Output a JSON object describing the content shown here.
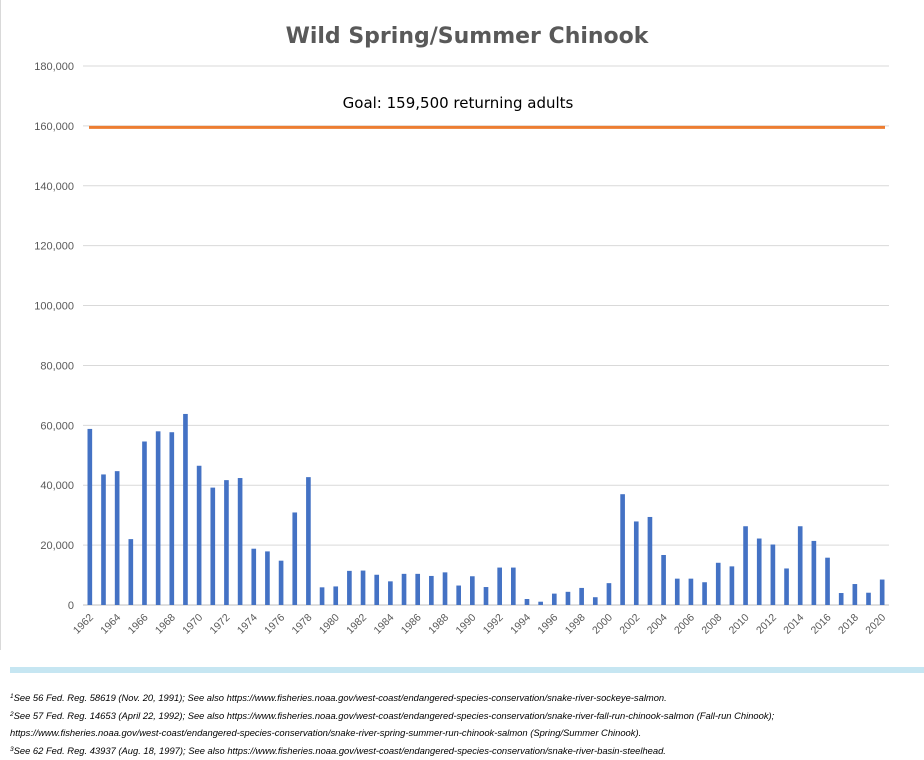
{
  "chart_data": {
    "type": "bar",
    "title": "Wild Spring/Summer Chinook",
    "xlabel": "",
    "ylabel": "",
    "ylim": [
      0,
      180000
    ],
    "yticks": [
      "0",
      "20,000",
      "40,000",
      "60,000",
      "80,000",
      "100,000",
      "120,000",
      "140,000",
      "160,000",
      "180,000"
    ],
    "grid": true,
    "legend": "none",
    "categories": [
      "1962",
      "1963",
      "1964",
      "1965",
      "1966",
      "1967",
      "1968",
      "1969",
      "1970",
      "1971",
      "1972",
      "1973",
      "1974",
      "1975",
      "1976",
      "1977",
      "1978",
      "1979",
      "1980",
      "1981",
      "1982",
      "1983",
      "1984",
      "1985",
      "1986",
      "1987",
      "1988",
      "1989",
      "1990",
      "1991",
      "1992",
      "1993",
      "1994",
      "1995",
      "1996",
      "1997",
      "1998",
      "1999",
      "2000",
      "2001",
      "2002",
      "2003",
      "2004",
      "2005",
      "2006",
      "2007",
      "2008",
      "2009",
      "2010",
      "2011",
      "2012",
      "2013",
      "2014",
      "2015",
      "2016",
      "2017",
      "2018",
      "2019",
      "2020"
    ],
    "xtick_labels": [
      "1962",
      "1964",
      "1966",
      "1968",
      "1970",
      "1972",
      "1974",
      "1976",
      "1978",
      "1980",
      "1982",
      "1984",
      "1986",
      "1988",
      "1990",
      "1992",
      "1994",
      "1996",
      "1998",
      "2000",
      "2002",
      "2004",
      "2006",
      "2008",
      "2010",
      "2012",
      "2014",
      "2016",
      "2018",
      "2020"
    ],
    "values": [
      58800,
      43600,
      44700,
      22000,
      54600,
      58000,
      57700,
      63800,
      46500,
      39200,
      41700,
      42400,
      18800,
      17900,
      14800,
      30900,
      42700,
      5900,
      6200,
      11400,
      11500,
      10100,
      7900,
      10400,
      10400,
      9700,
      10900,
      6500,
      9600,
      6000,
      12500,
      12500,
      2000,
      1100,
      3800,
      4400,
      5700,
      2600,
      7300,
      37000,
      27900,
      29400,
      16700,
      8800,
      8800,
      7600,
      14100,
      12900,
      26300,
      22200,
      20200,
      12200,
      26300,
      21400,
      15800,
      4000,
      7000,
      4100,
      8500
    ],
    "bar_color": "#4472c4",
    "goal": {
      "value": 159500,
      "label": "Goal: 159,500 returning adults",
      "color": "#ed7d31"
    }
  },
  "footnotes": [
    {
      "mark": "1",
      "text": "See 56 Fed. Reg. 58619 (Nov. 20, 1991); See also https://www.fisheries.noaa.gov/west-coast/endangered-species-conservation/snake-river-sockeye-salmon."
    },
    {
      "mark": "2",
      "text": "See 57 Fed. Reg. 14653 (April 22, 1992); See also https://www.fisheries.noaa.gov/west-coast/endangered-species-conservation/snake-river-fall-run-chinook-salmon (Fall-run Chinook);"
    },
    {
      "mark": "",
      "text": "https://www.fisheries.noaa.gov/west-coast/endangered-species-conservation/snake-river-spring-summer-run-chinook-salmon (Spring/Summer Chinook)."
    },
    {
      "mark": "3",
      "text": "See 62 Fed. Reg. 43937 (Aug. 18, 1997); See also https://www.fisheries.noaa.gov/west-coast/endangered-species-conservation/snake-river-basin-steelhead."
    }
  ]
}
